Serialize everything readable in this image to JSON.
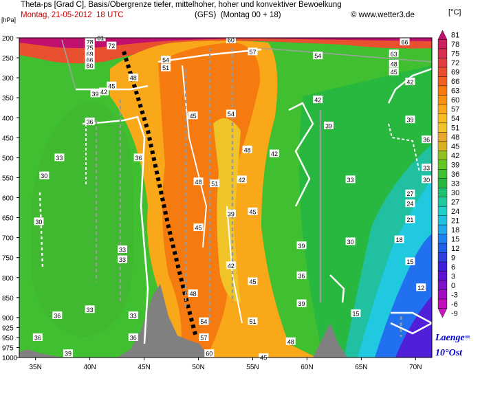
{
  "header": {
    "line1": "Theta-ps [Grad C], Basis/Obergrenze tiefer, mittelhoher, hoher und konvektiver Bewoelkung",
    "date": "Montag, 21-05-2012  18 UTC",
    "model": "(GFS)  (Montag 00 + 18)",
    "copyright": "© www.wetter3.de"
  },
  "annotation": {
    "line1": "Laenge=",
    "line2": "10°Ost"
  },
  "colors": {
    "terrain": "#808080",
    "cloud_line": "#ffffff",
    "front_line": "#000000"
  },
  "chart_data": {
    "type": "heatmap",
    "title": "Theta-ps [Grad C], Basis/Obergrenze tiefer, mittelhoher, hoher und konvektiver Bewoelkung",
    "xlabel": "",
    "ylabel": "hPa",
    "x_unit_label": "[hPa]",
    "colorbar_unit": "[°C]",
    "x_ticks": [
      "35N",
      "40N",
      "45N",
      "50N",
      "55N",
      "60N",
      "65N",
      "70N"
    ],
    "x_tick_values": [
      35,
      40,
      45,
      50,
      55,
      60,
      65,
      70
    ],
    "xlim": [
      33.5,
      71.5
    ],
    "y_ticks": [
      200,
      250,
      300,
      350,
      400,
      450,
      500,
      550,
      600,
      650,
      700,
      750,
      800,
      850,
      900,
      925,
      950,
      975,
      1000
    ],
    "y_tick_labels": [
      "200",
      "250",
      "300",
      "350",
      "400",
      "450",
      "500",
      "550",
      "600",
      "650",
      "700",
      "750",
      "800",
      "850",
      "900",
      "925",
      "950",
      "975",
      "1000"
    ],
    "ylim": [
      1000,
      200
    ],
    "colorbar_levels": [
      81,
      78,
      75,
      72,
      69,
      66,
      63,
      60,
      57,
      54,
      51,
      48,
      45,
      42,
      39,
      36,
      33,
      30,
      27,
      24,
      21,
      18,
      15,
      12,
      9,
      6,
      3,
      0,
      -3,
      -6,
      -9
    ],
    "colorbar_colors": [
      "#c01070",
      "#cc2060",
      "#d83050",
      "#e04040",
      "#e85030",
      "#f06020",
      "#f57a10",
      "#f89010",
      "#f8a818",
      "#f8bc20",
      "#f0c428",
      "#e8a830",
      "#d8b020",
      "#90c020",
      "#60c820",
      "#40c030",
      "#28b840",
      "#20c070",
      "#20c8a0",
      "#20d0c8",
      "#20c0e0",
      "#20a8e8",
      "#2080f0",
      "#2060e8",
      "#3040e0",
      "#4020d8",
      "#6010d0",
      "#8010c8",
      "#a010c0",
      "#c010b8",
      "#c818c0"
    ],
    "contour_labels": [
      {
        "x": 35.3,
        "p": 660,
        "v": "30"
      },
      {
        "x": 35.8,
        "p": 545,
        "v": "30"
      },
      {
        "x": 37.2,
        "p": 500,
        "v": "33"
      },
      {
        "x": 35.2,
        "p": 950,
        "v": "36"
      },
      {
        "x": 37.0,
        "p": 895,
        "v": "36"
      },
      {
        "x": 38.0,
        "p": 990,
        "v": "39"
      },
      {
        "x": 40.0,
        "p": 880,
        "v": "33"
      },
      {
        "x": 40.0,
        "p": 410,
        "v": "36"
      },
      {
        "x": 40.5,
        "p": 340,
        "v": "39"
      },
      {
        "x": 41.3,
        "p": 335,
        "v": "42"
      },
      {
        "x": 42.0,
        "p": 320,
        "v": "45"
      },
      {
        "x": 44.0,
        "p": 300,
        "v": "48"
      },
      {
        "x": 44.5,
        "p": 500,
        "v": "36"
      },
      {
        "x": 43.0,
        "p": 730,
        "v": "33"
      },
      {
        "x": 43.0,
        "p": 755,
        "v": "33"
      },
      {
        "x": 44.0,
        "p": 895,
        "v": "33"
      },
      {
        "x": 44.0,
        "p": 950,
        "v": "36"
      },
      {
        "x": 40.0,
        "p": 210,
        "v": "78"
      },
      {
        "x": 40.0,
        "p": 225,
        "v": "75"
      },
      {
        "x": 40.0,
        "p": 240,
        "v": "69"
      },
      {
        "x": 40.0,
        "p": 255,
        "v": "66"
      },
      {
        "x": 40.0,
        "p": 270,
        "v": "60"
      },
      {
        "x": 41.0,
        "p": 200,
        "v": "81"
      },
      {
        "x": 42.0,
        "p": 220,
        "v": "72"
      },
      {
        "x": 47.0,
        "p": 255,
        "v": "54"
      },
      {
        "x": 47.0,
        "p": 275,
        "v": "51"
      },
      {
        "x": 49.5,
        "p": 395,
        "v": "45"
      },
      {
        "x": 50.0,
        "p": 560,
        "v": "48"
      },
      {
        "x": 50.0,
        "p": 675,
        "v": "45"
      },
      {
        "x": 49.5,
        "p": 840,
        "v": "48"
      },
      {
        "x": 50.5,
        "p": 910,
        "v": "54"
      },
      {
        "x": 50.5,
        "p": 950,
        "v": "57"
      },
      {
        "x": 51.0,
        "p": 990,
        "v": "60"
      },
      {
        "x": 53.0,
        "p": 205,
        "v": "60"
      },
      {
        "x": 55.0,
        "p": 235,
        "v": "57"
      },
      {
        "x": 61.0,
        "p": 245,
        "v": "54"
      },
      {
        "x": 53.0,
        "p": 390,
        "v": "54"
      },
      {
        "x": 54.5,
        "p": 480,
        "v": "48"
      },
      {
        "x": 51.5,
        "p": 565,
        "v": "51"
      },
      {
        "x": 54.0,
        "p": 555,
        "v": "42"
      },
      {
        "x": 53.0,
        "p": 640,
        "v": "39"
      },
      {
        "x": 53.0,
        "p": 770,
        "v": "42"
      },
      {
        "x": 55.0,
        "p": 635,
        "v": "45"
      },
      {
        "x": 55.0,
        "p": 810,
        "v": "45"
      },
      {
        "x": 55.0,
        "p": 910,
        "v": "51"
      },
      {
        "x": 56.0,
        "p": 1000,
        "v": "45"
      },
      {
        "x": 57.0,
        "p": 490,
        "v": "42"
      },
      {
        "x": 58.5,
        "p": 960,
        "v": "48"
      },
      {
        "x": 59.5,
        "p": 720,
        "v": "39"
      },
      {
        "x": 59.5,
        "p": 795,
        "v": "36"
      },
      {
        "x": 59.5,
        "p": 865,
        "v": "39"
      },
      {
        "x": 61.0,
        "p": 355,
        "v": "42"
      },
      {
        "x": 62.0,
        "p": 420,
        "v": "39"
      },
      {
        "x": 64.0,
        "p": 555,
        "v": "33"
      },
      {
        "x": 64.0,
        "p": 710,
        "v": "30"
      },
      {
        "x": 64.5,
        "p": 890,
        "v": "15"
      },
      {
        "x": 68.0,
        "p": 240,
        "v": "63"
      },
      {
        "x": 68.0,
        "p": 265,
        "v": "48"
      },
      {
        "x": 68.0,
        "p": 285,
        "v": "45"
      },
      {
        "x": 69.0,
        "p": 210,
        "v": "66"
      },
      {
        "x": 69.5,
        "p": 310,
        "v": "42"
      },
      {
        "x": 69.5,
        "p": 405,
        "v": "39"
      },
      {
        "x": 71.0,
        "p": 455,
        "v": "36"
      },
      {
        "x": 71.0,
        "p": 525,
        "v": "33"
      },
      {
        "x": 71.0,
        "p": 555,
        "v": "30"
      },
      {
        "x": 69.5,
        "p": 590,
        "v": "27"
      },
      {
        "x": 69.5,
        "p": 615,
        "v": "24"
      },
      {
        "x": 69.5,
        "p": 655,
        "v": "21"
      },
      {
        "x": 68.5,
        "p": 705,
        "v": "18"
      },
      {
        "x": 69.5,
        "p": 760,
        "v": "15"
      },
      {
        "x": 70.5,
        "p": 825,
        "v": "12"
      }
    ]
  }
}
